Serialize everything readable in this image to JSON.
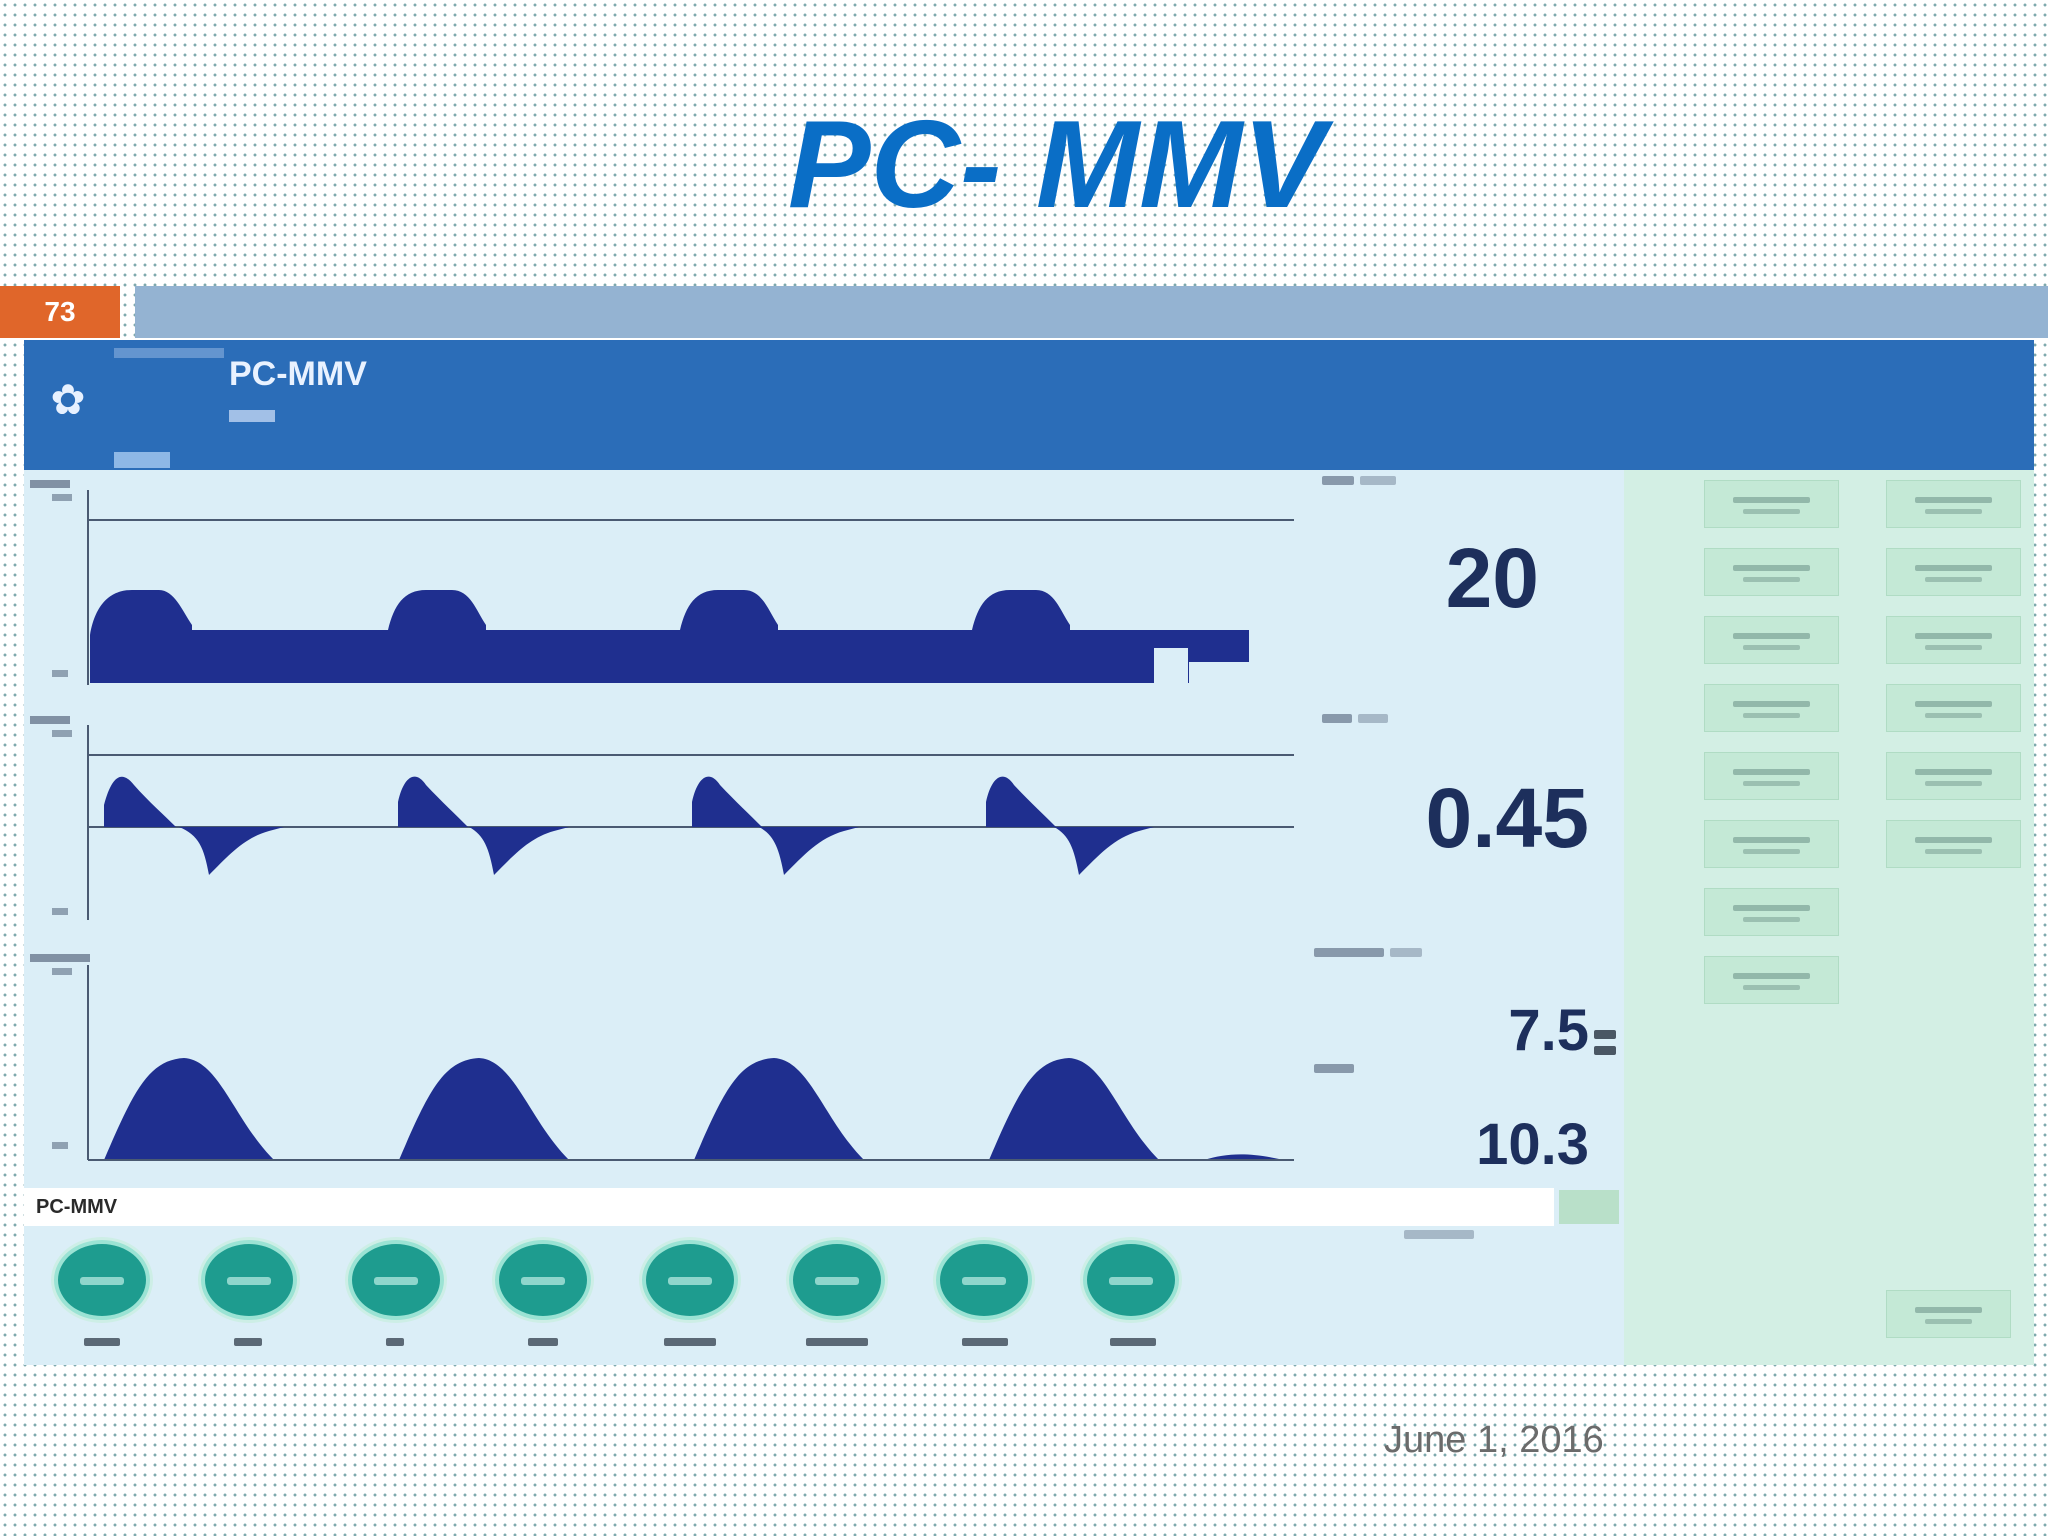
{
  "slide": {
    "title": "PC- MMV",
    "slide_number": "73",
    "date": "June 1, 2016"
  },
  "ventilator": {
    "mode_title": "PC-MMV",
    "status_mode": "PC-MMV",
    "readouts": {
      "value_1": "20",
      "value_2": "0.45",
      "value_3": "7.5",
      "value_4": "10.3"
    },
    "colors": {
      "header": "#2b6db8",
      "screen": "#dbeef7",
      "waveform": "#1f2f8f",
      "panel": "#d3efe4",
      "knob": "#1e9c8f"
    }
  }
}
